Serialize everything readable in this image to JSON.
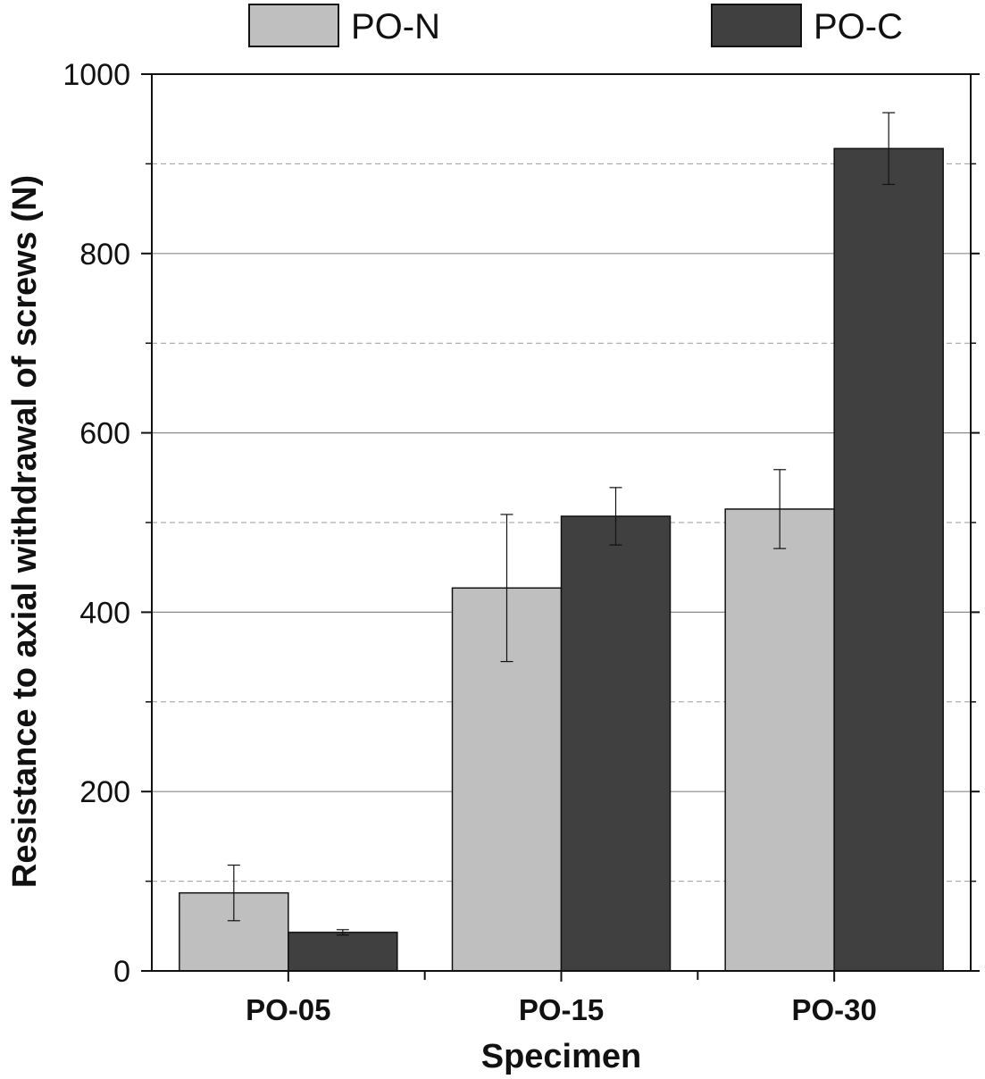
{
  "chart_data": {
    "type": "bar",
    "categories": [
      "PO-05",
      "PO-15",
      "PO-30"
    ],
    "series": [
      {
        "name": "PO-N",
        "color": "#bfbfbf",
        "values": [
          87,
          427,
          515
        ],
        "errors": [
          31,
          82,
          44
        ]
      },
      {
        "name": "PO-C",
        "color": "#404040",
        "values": [
          43,
          507,
          917
        ],
        "errors": [
          3,
          32,
          40
        ]
      }
    ],
    "xlabel": "Specimen",
    "ylabel": "Resistance to axial withdrawal of screws (N)",
    "ylim": [
      0,
      1000
    ],
    "yticks": [
      0,
      200,
      400,
      600,
      800,
      1000
    ],
    "major_grid": [
      200,
      400,
      600,
      800
    ],
    "minor_grid": [
      100,
      300,
      500,
      700,
      900
    ],
    "legend_position": "top"
  }
}
